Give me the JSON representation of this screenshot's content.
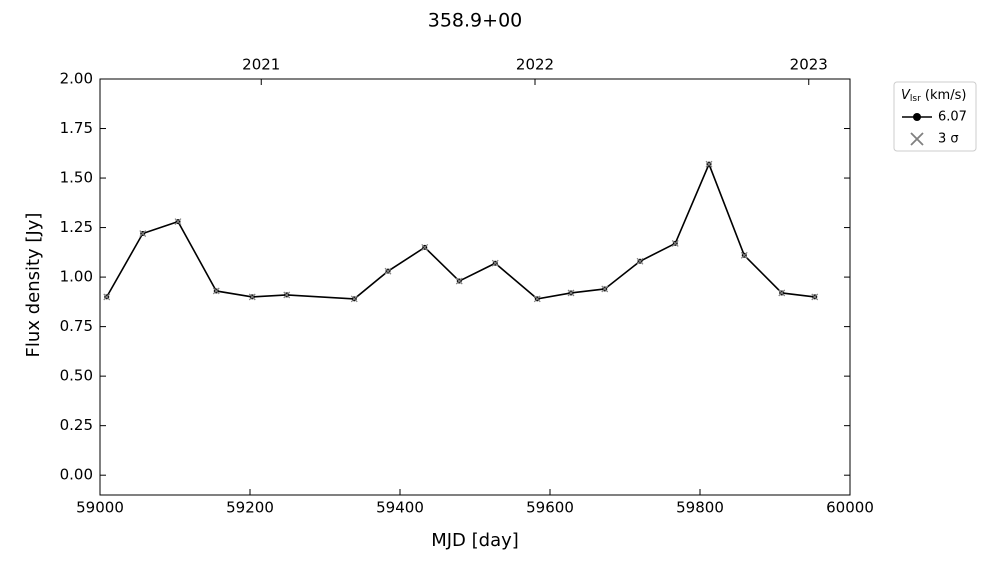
{
  "chart_data": {
    "type": "line",
    "title": "358.9+00",
    "xlabel": "MJD [day]",
    "ylabel": "Flux density [Jy]",
    "x": [
      59009,
      59057,
      59104,
      59155,
      59203,
      59249,
      59339,
      59384,
      59433,
      59479,
      59527,
      59583,
      59628,
      59673,
      59720,
      59767,
      59812,
      59859,
      59909,
      59953
    ],
    "series": [
      {
        "name": "6.07",
        "color": "#000000",
        "values": [
          0.9,
          1.22,
          1.28,
          0.93,
          0.9,
          0.91,
          0.89,
          1.03,
          1.15,
          0.98,
          1.07,
          0.89,
          0.92,
          0.94,
          1.08,
          1.17,
          1.57,
          1.11,
          0.92,
          0.9
        ]
      }
    ],
    "xlim": [
      59000,
      60000
    ],
    "xticks": [
      59000,
      59200,
      59400,
      59600,
      59800,
      60000
    ],
    "x2ticks": [
      {
        "value": 59215,
        "label": "2021"
      },
      {
        "value": 59580,
        "label": "2022"
      },
      {
        "value": 59945,
        "label": "2023"
      }
    ],
    "ylim": [
      -0.1,
      2.0
    ],
    "yticks": [
      {
        "value": 0,
        "label": "0.00"
      },
      {
        "value": 0.25,
        "label": "0.25"
      },
      {
        "value": 0.5,
        "label": "0.50"
      },
      {
        "value": 0.75,
        "label": "0.75"
      },
      {
        "value": 1,
        "label": "1.00"
      },
      {
        "value": 1.25,
        "label": "1.25"
      },
      {
        "value": 1.5,
        "label": "1.50"
      },
      {
        "value": 1.75,
        "label": "1.75"
      },
      {
        "value": 2,
        "label": "2.00"
      }
    ],
    "legend_title": {
      "main": "V",
      "sub": "lsr",
      "rest": " (km/s)"
    },
    "sigma_label": "3 σ",
    "sigma_color": "#808080",
    "legend": "outside upper right"
  }
}
